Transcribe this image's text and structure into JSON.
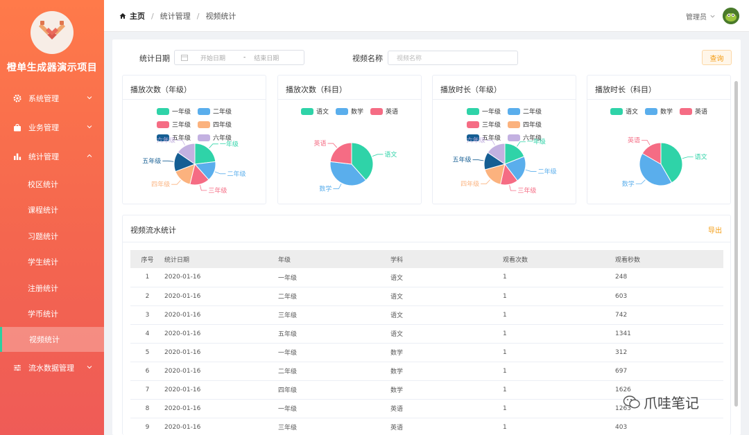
{
  "app": {
    "title": "橙单生成器演示项目"
  },
  "sidebar": {
    "menus": [
      {
        "label": "系统管理",
        "icon": "gear-icon"
      },
      {
        "label": "业务管理",
        "icon": "bag-icon"
      },
      {
        "label": "统计管理",
        "icon": "bar-chart-icon"
      }
    ],
    "stats_items": [
      "校区统计",
      "课程统计",
      "习题统计",
      "学生统计",
      "注册统计",
      "学币统计",
      "视频统计"
    ],
    "last_menu": {
      "label": "流水数据管理",
      "icon": "sliders-icon"
    }
  },
  "header": {
    "breadcrumb": [
      "主页",
      "统计管理",
      "视频统计"
    ],
    "user": "管理员"
  },
  "filters": {
    "date_label": "统计日期",
    "start_placeholder": "开始日期",
    "end_placeholder": "结束日期",
    "name_label": "视频名称",
    "name_placeholder": "视频名称",
    "query_label": "查询"
  },
  "colors": {
    "grade1": "#2fd3a8",
    "grade2": "#5aaeec",
    "grade3": "#f56c84",
    "grade4": "#fbb27e",
    "grade5": "#155e93",
    "grade6": "#c3b1e1",
    "chinese": "#2fd3a8",
    "math": "#5aaeec",
    "english": "#f56c84"
  },
  "cards": [
    {
      "title": "播放次数（年级）",
      "type": "grade",
      "slices": [
        {
          "name": "一年级",
          "color": "#2fd3a8",
          "value": 3
        },
        {
          "name": "二年级",
          "color": "#5aaeec",
          "value": 2
        },
        {
          "name": "三年级",
          "color": "#f56c84",
          "value": 2
        },
        {
          "name": "四年级",
          "color": "#fbb27e",
          "value": 2
        },
        {
          "name": "五年级",
          "color": "#155e93",
          "value": 2
        },
        {
          "name": "六年级",
          "color": "#c3b1e1",
          "value": 2
        }
      ]
    },
    {
      "title": "播放次数（科目）",
      "type": "subject",
      "slices": [
        {
          "name": "语文",
          "color": "#2fd3a8",
          "value": 5
        },
        {
          "name": "数学",
          "color": "#5aaeec",
          "value": 5
        },
        {
          "name": "英语",
          "color": "#f56c84",
          "value": 3
        }
      ]
    },
    {
      "title": "播放时长（年级）",
      "type": "grade",
      "slices": [
        {
          "name": "一年级",
          "color": "#2fd3a8",
          "value": 11
        },
        {
          "name": "二年级",
          "color": "#5aaeec",
          "value": 12
        },
        {
          "name": "三年级",
          "color": "#f56c84",
          "value": 8
        },
        {
          "name": "四年级",
          "color": "#fbb27e",
          "value": 10
        },
        {
          "name": "五年级",
          "color": "#155e93",
          "value": 8
        },
        {
          "name": "六年级",
          "color": "#c3b1e1",
          "value": 9
        }
      ]
    },
    {
      "title": "播放时长（科目）",
      "type": "subject",
      "slices": [
        {
          "name": "语文",
          "color": "#2fd3a8",
          "value": 5
        },
        {
          "name": "数学",
          "color": "#5aaeec",
          "value": 5
        },
        {
          "name": "英语",
          "color": "#f56c84",
          "value": 2
        }
      ]
    }
  ],
  "table": {
    "title": "视频流水统计",
    "export_label": "导出",
    "columns": [
      "序号",
      "统计日期",
      "年级",
      "学科",
      "观看次数",
      "观看秒数"
    ],
    "rows": [
      [
        "1",
        "2020-01-16",
        "一年级",
        "语文",
        "1",
        "248"
      ],
      [
        "2",
        "2020-01-16",
        "二年级",
        "语文",
        "1",
        "603"
      ],
      [
        "3",
        "2020-01-16",
        "三年级",
        "语文",
        "1",
        "742"
      ],
      [
        "4",
        "2020-01-16",
        "五年级",
        "语文",
        "1",
        "1341"
      ],
      [
        "5",
        "2020-01-16",
        "一年级",
        "数学",
        "1",
        "312"
      ],
      [
        "6",
        "2020-01-16",
        "二年级",
        "数学",
        "1",
        "697"
      ],
      [
        "7",
        "2020-01-16",
        "四年级",
        "数学",
        "1",
        "1626"
      ],
      [
        "8",
        "2020-01-16",
        "一年级",
        "英语",
        "1",
        "1263"
      ],
      [
        "9",
        "2020-01-16",
        "三年级",
        "英语",
        "1",
        "403"
      ]
    ]
  },
  "watermark": "爪哇笔记"
}
